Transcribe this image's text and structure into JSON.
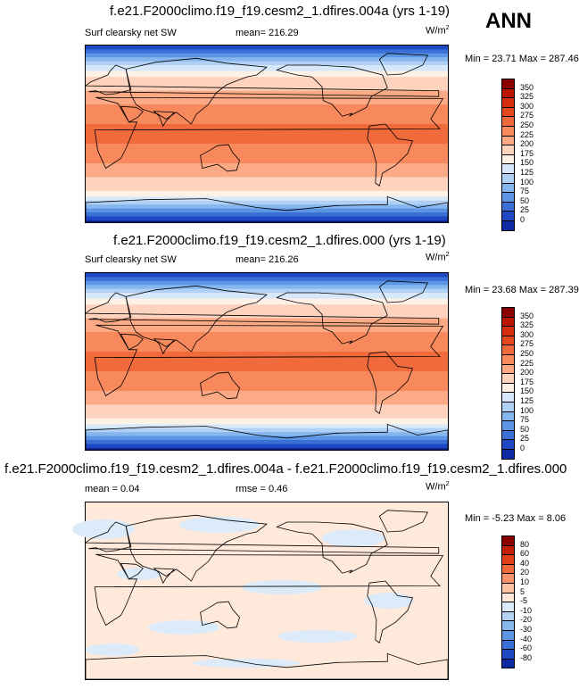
{
  "season": "ANN",
  "panels": [
    {
      "title": "f.e21.F2000climo.f19_f19.cesm2_1.dfires.004a (yrs 1-19)",
      "left_label": "Surf clearsky net SW",
      "center_label": "mean= 216.29",
      "units_base": "W/m",
      "units_exp": "2",
      "minmax": "Min =  23.71 Max = 287.46",
      "kind": "absolute"
    },
    {
      "title": "f.e21.F2000climo.f19_f19.cesm2_1.dfires.000 (yrs 1-19)",
      "left_label": "Surf clearsky net SW",
      "center_label": "mean= 216.26",
      "units_base": "W/m",
      "units_exp": "2",
      "minmax": "Min =  23.68 Max = 287.39",
      "kind": "absolute"
    },
    {
      "title": "f.e21.F2000climo.f19_f19.cesm2_1.dfires.004a - f.e21.F2000climo.f19_f19.cesm2_1.dfires.000",
      "left_label": "mean =   0.04",
      "center_label": "rmse =   0.46",
      "units_base": "W/m",
      "units_exp": "2",
      "minmax": "Min =  -5.23 Max =   8.06",
      "kind": "difference"
    }
  ],
  "colorbar_absolute": {
    "labels": [
      "350",
      "325",
      "300",
      "275",
      "250",
      "225",
      "200",
      "175",
      "150",
      "125",
      "100",
      "75",
      "50",
      "25",
      "0"
    ],
    "colors": [
      "#8B0000",
      "#B81600",
      "#D42E0E",
      "#E5471E",
      "#F06A3C",
      "#F7895C",
      "#FBAA85",
      "#FDD3BE",
      "#FFF1E6",
      "#D6E8FA",
      "#B0D0F5",
      "#86B6EE",
      "#5C95E3",
      "#3A70D6",
      "#1F49C2",
      "#0D2AA3"
    ]
  },
  "colorbar_difference": {
    "labels": [
      "80",
      "60",
      "40",
      "20",
      "10",
      "5",
      "-5",
      "-10",
      "-20",
      "-30",
      "-40",
      "-60",
      "-80"
    ],
    "colors": [
      "#8B0000",
      "#C11F07",
      "#E04015",
      "#F06A3C",
      "#F8946A",
      "#FCC3A4",
      "#FFE9DB",
      "#DCEBFA",
      "#B4D3F4",
      "#88B8EE",
      "#5C95E3",
      "#3A70D6",
      "#1F49C2",
      "#0D2AA3"
    ]
  },
  "colors": {
    "land_outline": "#000000"
  }
}
